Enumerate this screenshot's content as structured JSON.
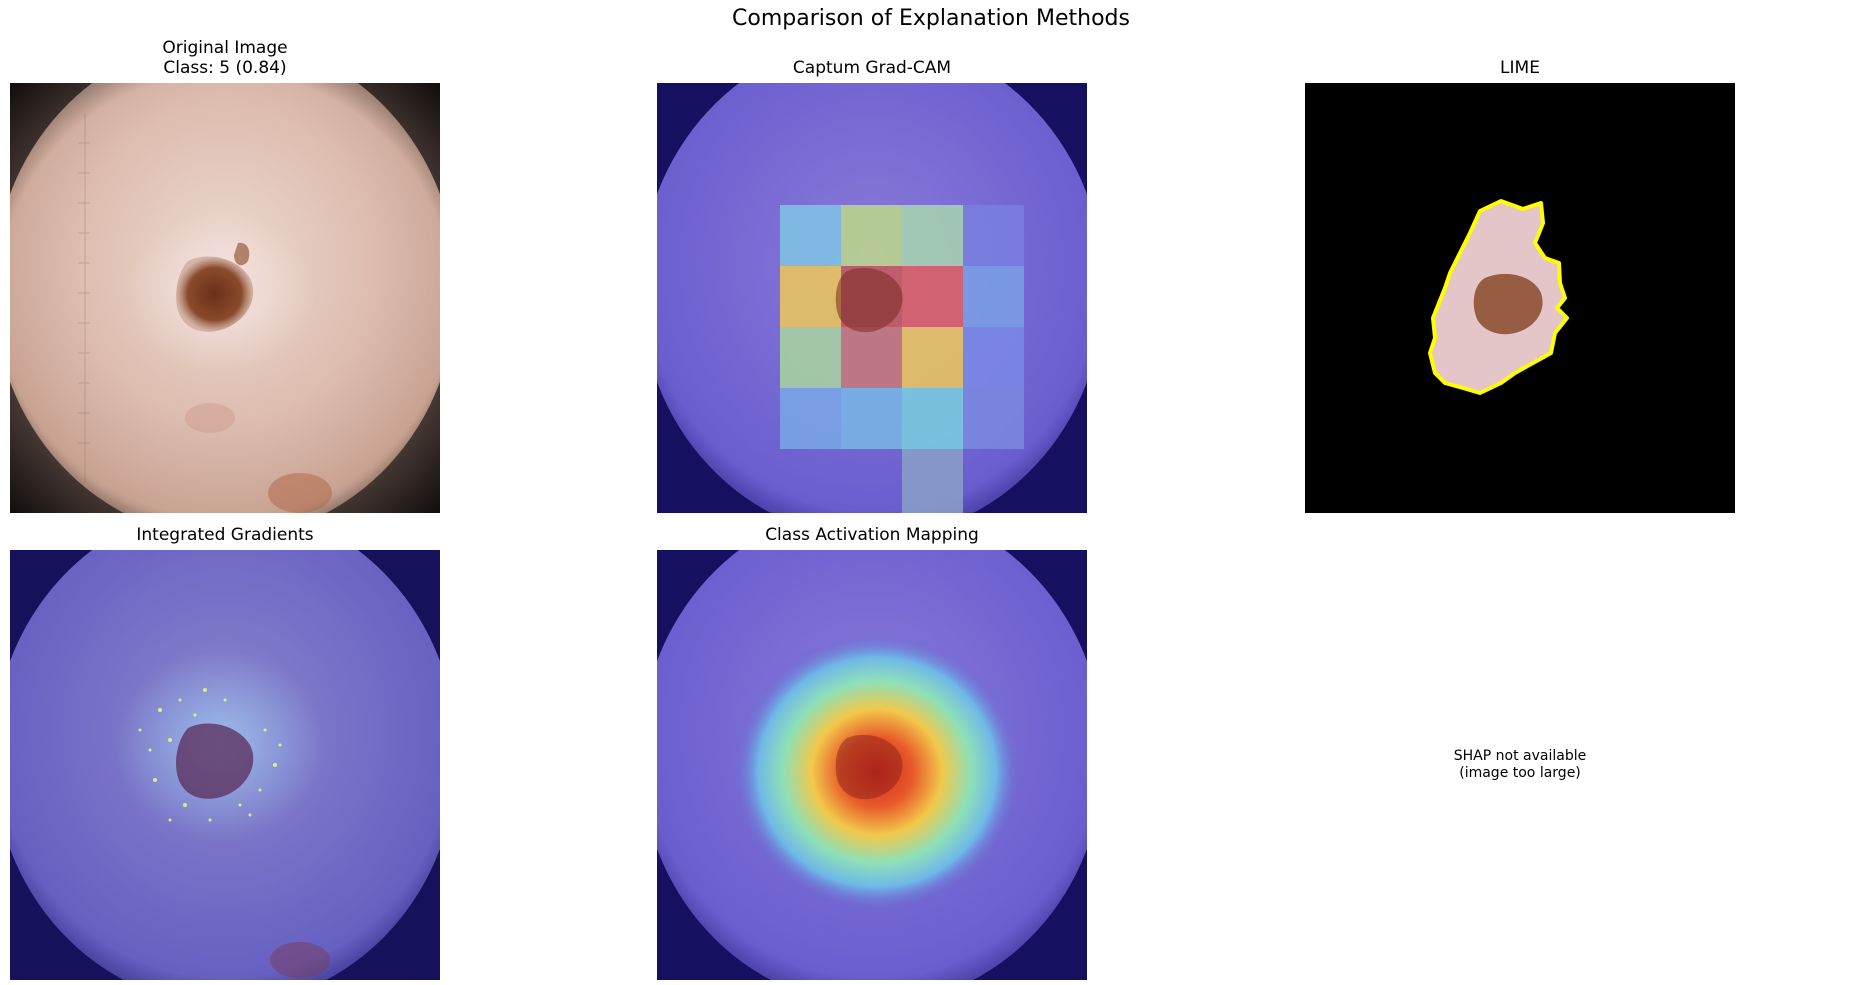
{
  "figure": {
    "title": "Comparison of Explanation Methods"
  },
  "panels": {
    "original": {
      "title_line1": "Original Image",
      "title_line2": "Class: 5 (0.84)"
    },
    "gradcam": {
      "title": "Captum Grad-CAM"
    },
    "lime": {
      "title": "LIME"
    },
    "integrated_gradients": {
      "title": "Integrated Gradients"
    },
    "cam": {
      "title": "Class Activation Mapping"
    },
    "shap": {
      "message_line1": "SHAP not available",
      "message_line2": "(image too large)"
    }
  },
  "colors": {
    "skin": "#d8b7a8",
    "lesion": "#7a3a22",
    "overlay_blue": "#6a5ee0",
    "lime_boundary": "#ffff00"
  }
}
